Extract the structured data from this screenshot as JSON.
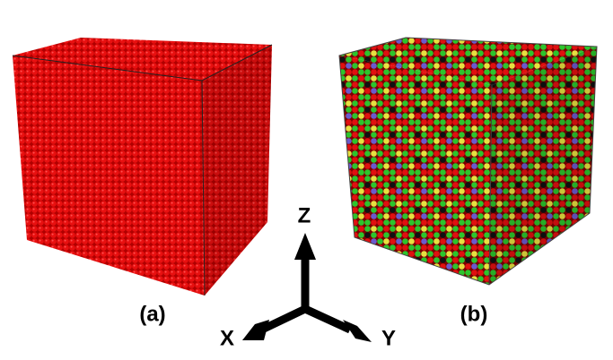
{
  "panels": [
    {
      "label": "(a)"
    },
    {
      "label": "(b)"
    }
  ],
  "axes": {
    "z": "Z",
    "x": "X",
    "y": "Y"
  }
}
